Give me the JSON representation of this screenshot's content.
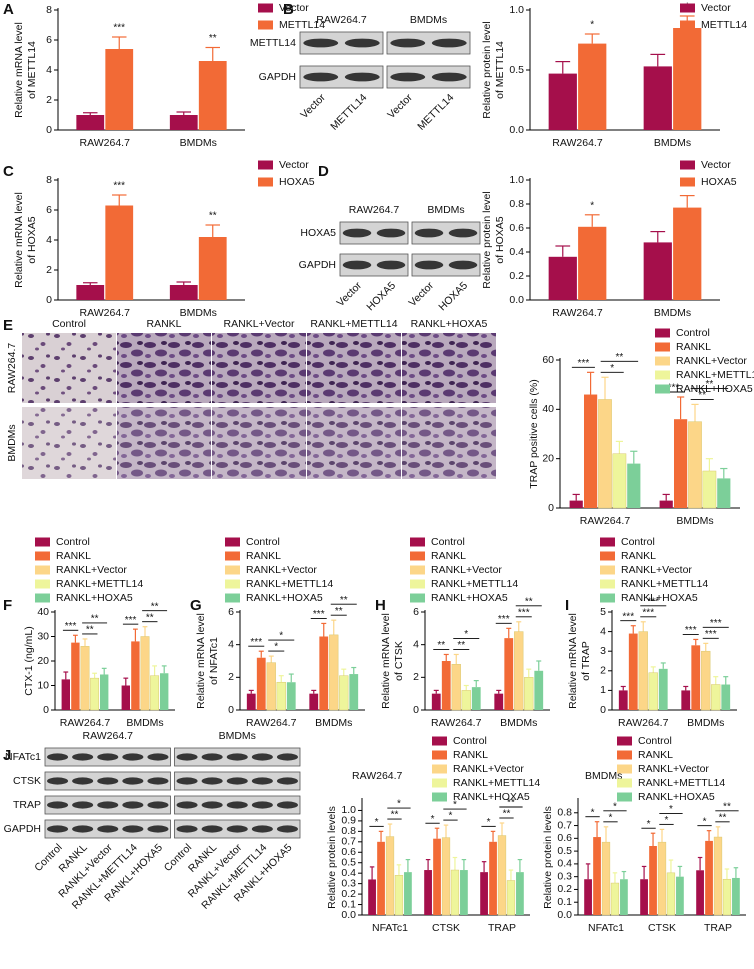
{
  "panels": [
    "A",
    "B",
    "C",
    "D",
    "E",
    "F",
    "G",
    "H",
    "I",
    "J"
  ],
  "blots": [
    {
      "groups": [
        "RAW264.7",
        "BMDMs"
      ],
      "rows": [
        "METTL14",
        "GAPDH"
      ],
      "lanes": [
        "Vector",
        "METTL14",
        "Vector",
        "METTL14"
      ]
    },
    {
      "groups": [
        "RAW264.7",
        "BMDMs"
      ],
      "rows": [
        "HOXA5",
        "GAPDH"
      ],
      "lanes": [
        "Vector",
        "HOXA5",
        "Vector",
        "HOXA5"
      ]
    },
    {
      "groups": [
        "RAW264.7",
        "BMDMs"
      ],
      "rows": [
        "NFATc1",
        "CTSK",
        "TRAP",
        "GAPDH"
      ],
      "lanes": [
        "Control",
        "RANKL",
        "RANKL+Vector",
        "RANKL+METTL14",
        "RANKL+HOXA5",
        "Control",
        "RANKL",
        "RANKL+Vector",
        "RANKL+METTL14",
        "RANKL+HOXA5"
      ]
    }
  ],
  "micrographs": {
    "columns": [
      "Control",
      "RANKL",
      "RANKL+Vector",
      "RANKL+METTL14",
      "RANKL+HOXA5"
    ],
    "rows": [
      "RAW264.7",
      "BMDMs"
    ]
  },
  "chart_data": [
    {
      "type": "bar",
      "ylabel": [
        "Relative mRNA level",
        "of METTL14"
      ],
      "categories": [
        "RAW264.7",
        "BMDMs"
      ],
      "series": [
        {
          "name": "Vector",
          "color": "#a50f4b",
          "values": [
            1.0,
            1.0
          ],
          "errors": [
            0.15,
            0.2
          ]
        },
        {
          "name": "METTL14",
          "color": "#f26a36",
          "values": [
            5.4,
            4.6
          ],
          "errors": [
            0.8,
            0.9
          ]
        }
      ],
      "ylim": [
        0,
        8
      ],
      "yticks": [
        0,
        2,
        4,
        6,
        8
      ],
      "annotations": [
        "***",
        "**"
      ]
    },
    {
      "type": "bar",
      "ylabel": [
        "Relative protein level",
        "of METTL14"
      ],
      "categories": [
        "RAW264.7",
        "BMDMs"
      ],
      "series": [
        {
          "name": "Vector",
          "color": "#a50f4b",
          "values": [
            0.47,
            0.53
          ],
          "errors": [
            0.1,
            0.1
          ]
        },
        {
          "name": "METTL14",
          "color": "#f26a36",
          "values": [
            0.72,
            0.85
          ],
          "errors": [
            0.08,
            0.1
          ]
        }
      ],
      "ylim": [
        0,
        1
      ],
      "yticks": [
        {
          "value": 0,
          "label": "0.0"
        },
        {
          "value": 0.5,
          "label": "0.5"
        },
        {
          "value": 1,
          "label": "1.0"
        }
      ],
      "annotations": [
        "*",
        "*"
      ]
    },
    {
      "type": "bar",
      "ylabel": [
        "Relative mRNA level",
        "of HOXA5"
      ],
      "categories": [
        "RAW264.7",
        "BMDMs"
      ],
      "series": [
        {
          "name": "Vector",
          "color": "#a50f4b",
          "values": [
            1.0,
            1.0
          ],
          "errors": [
            0.15,
            0.2
          ]
        },
        {
          "name": "HOXA5",
          "color": "#f26a36",
          "values": [
            6.3,
            4.2
          ],
          "errors": [
            0.7,
            0.8
          ]
        }
      ],
      "ylim": [
        0,
        8
      ],
      "yticks": [
        0,
        2,
        4,
        6,
        8
      ],
      "annotations": [
        "***",
        "**"
      ]
    },
    {
      "type": "bar",
      "ylabel": [
        "Relative protein level",
        "of HOXA5"
      ],
      "categories": [
        "RAW264.7",
        "BMDMs"
      ],
      "series": [
        {
          "name": "Vector",
          "color": "#a50f4b",
          "values": [
            0.36,
            0.48
          ],
          "errors": [
            0.09,
            0.09
          ]
        },
        {
          "name": "HOXA5",
          "color": "#f26a36",
          "values": [
            0.61,
            0.77
          ],
          "errors": [
            0.1,
            0.1
          ]
        }
      ],
      "ylim": [
        0,
        1
      ],
      "yticks": [
        {
          "value": 0,
          "label": "0.0"
        },
        {
          "value": 0.2,
          "label": "0.2"
        },
        {
          "value": 0.4,
          "label": "0.4"
        },
        {
          "value": 0.6,
          "label": "0.6"
        },
        {
          "value": 0.8,
          "label": "0.8"
        },
        {
          "value": 1,
          "label": "1.0"
        }
      ],
      "annotations": [
        "*",
        "*"
      ]
    },
    {
      "type": "bar",
      "ylabel": [
        "TRAP positive cells (%)"
      ],
      "categories": [
        "RAW264.7",
        "BMDMs"
      ],
      "series": [
        {
          "name": "Control",
          "color": "#a50f4b",
          "values": [
            3,
            3
          ],
          "errors": [
            2.5,
            2.5
          ]
        },
        {
          "name": "RANKL",
          "color": "#f26a36",
          "values": [
            46,
            36
          ],
          "errors": [
            9,
            9
          ]
        },
        {
          "name": "RANKL+Vector",
          "color": "#fcd688",
          "values": [
            44,
            35
          ],
          "errors": [
            9,
            7
          ]
        },
        {
          "name": "RANKL+METTL14",
          "color": "#eef59b",
          "values": [
            22,
            15
          ],
          "errors": [
            5,
            5
          ]
        },
        {
          "name": "RANKL+HOXA5",
          "color": "#7ccf99",
          "values": [
            18,
            12
          ],
          "errors": [
            5,
            4
          ]
        }
      ],
      "ylim": [
        0,
        60
      ],
      "yticks": [
        0,
        20,
        40,
        60
      ],
      "annotations": [
        "***",
        "*",
        "**",
        "***",
        "**",
        "**"
      ]
    },
    {
      "type": "bar",
      "ylabel": [
        "CTX-1 (ng/mL)"
      ],
      "categories": [
        "RAW264.7",
        "BMDMs"
      ],
      "series": [
        {
          "name": "Control",
          "color": "#a50f4b",
          "values": [
            12.5,
            10
          ],
          "errors": [
            3,
            3
          ]
        },
        {
          "name": "RANKL",
          "color": "#f26a36",
          "values": [
            27.5,
            28
          ],
          "errors": [
            3,
            5
          ]
        },
        {
          "name": "RANKL+Vector",
          "color": "#fcd688",
          "values": [
            26,
            30
          ],
          "errors": [
            3,
            4
          ]
        },
        {
          "name": "RANKL+METTL14",
          "color": "#eef59b",
          "values": [
            13,
            14
          ],
          "errors": [
            2,
            4
          ]
        },
        {
          "name": "RANKL+HOXA5",
          "color": "#7ccf99",
          "values": [
            14.5,
            15
          ],
          "errors": [
            2.5,
            3
          ]
        }
      ],
      "ylim": [
        0,
        40
      ],
      "yticks": [
        0,
        10,
        20,
        30,
        40
      ],
      "annotations": [
        "***",
        "**",
        "**",
        "***",
        "**",
        "**"
      ]
    },
    {
      "type": "bar",
      "ylabel": [
        "Relative mRNA level",
        "of NFATc1"
      ],
      "categories": [
        "RAW264.7",
        "BMDMs"
      ],
      "series": [
        {
          "name": "Control",
          "color": "#a50f4b",
          "values": [
            1,
            1
          ],
          "errors": [
            0.2,
            0.2
          ]
        },
        {
          "name": "RANKL",
          "color": "#f26a36",
          "values": [
            3.2,
            4.5
          ],
          "errors": [
            0.4,
            0.8
          ]
        },
        {
          "name": "RANKL+Vector",
          "color": "#fcd688",
          "values": [
            2.9,
            4.6
          ],
          "errors": [
            0.4,
            0.9
          ]
        },
        {
          "name": "RANKL+METTL14",
          "color": "#eef59b",
          "values": [
            1.7,
            2.1
          ],
          "errors": [
            0.4,
            0.4
          ]
        },
        {
          "name": "RANKL+HOXA5",
          "color": "#7ccf99",
          "values": [
            1.7,
            2.2
          ],
          "errors": [
            0.5,
            0.4
          ]
        }
      ],
      "ylim": [
        0,
        6
      ],
      "yticks": [
        0,
        2,
        4,
        6
      ],
      "annotations": [
        "***",
        "*",
        "*",
        "***",
        "**",
        "**"
      ]
    },
    {
      "type": "bar",
      "ylabel": [
        "Relative mRNA level",
        "of CTSK"
      ],
      "categories": [
        "RAW264.7",
        "BMDMs"
      ],
      "series": [
        {
          "name": "Control",
          "color": "#a50f4b",
          "values": [
            1,
            1
          ],
          "errors": [
            0.2,
            0.2
          ]
        },
        {
          "name": "RANKL",
          "color": "#f26a36",
          "values": [
            3,
            4.4
          ],
          "errors": [
            0.4,
            0.6
          ]
        },
        {
          "name": "RANKL+Vector",
          "color": "#fcd688",
          "values": [
            2.8,
            4.8
          ],
          "errors": [
            0.6,
            0.6
          ]
        },
        {
          "name": "RANKL+METTL14",
          "color": "#eef59b",
          "values": [
            1.2,
            2
          ],
          "errors": [
            0.3,
            0.5
          ]
        },
        {
          "name": "RANKL+HOXA5",
          "color": "#7ccf99",
          "values": [
            1.4,
            2.4
          ],
          "errors": [
            0.4,
            0.6
          ]
        }
      ],
      "ylim": [
        0,
        6
      ],
      "yticks": [
        0,
        2,
        4,
        6
      ],
      "annotations": [
        "**",
        "**",
        "*",
        "***",
        "***",
        "**"
      ]
    },
    {
      "type": "bar",
      "ylabel": [
        "Relative mRNA level",
        "of TRAP"
      ],
      "categories": [
        "RAW264.7",
        "BMDMs"
      ],
      "series": [
        {
          "name": "Control",
          "color": "#a50f4b",
          "values": [
            1,
            1
          ],
          "errors": [
            0.2,
            0.2
          ]
        },
        {
          "name": "RANKL",
          "color": "#f26a36",
          "values": [
            3.9,
            3.3
          ],
          "errors": [
            0.4,
            0.3
          ]
        },
        {
          "name": "RANKL+Vector",
          "color": "#fcd688",
          "values": [
            4,
            3
          ],
          "errors": [
            0.5,
            0.4
          ]
        },
        {
          "name": "RANKL+METTL14",
          "color": "#eef59b",
          "values": [
            1.9,
            1.3
          ],
          "errors": [
            0.3,
            0.4
          ]
        },
        {
          "name": "RANKL+HOXA5",
          "color": "#7ccf99",
          "values": [
            2.1,
            1.3
          ],
          "errors": [
            0.3,
            0.4
          ]
        }
      ],
      "ylim": [
        0,
        5
      ],
      "yticks": [
        0,
        1,
        2,
        3,
        4,
        5
      ],
      "annotations": [
        "***",
        "***",
        "***",
        "***",
        "***",
        "***"
      ]
    },
    {
      "type": "bar",
      "title": "RAW264.7",
      "ylabel": [
        "Relative protein levels"
      ],
      "categories": [
        "NFATc1",
        "CTSK",
        "TRAP"
      ],
      "series": [
        {
          "name": "Control",
          "color": "#a50f4b",
          "values": [
            0.34,
            0.43,
            0.41
          ],
          "errors": [
            0.12,
            0.1,
            0.1
          ]
        },
        {
          "name": "RANKL",
          "color": "#f26a36",
          "values": [
            0.7,
            0.73,
            0.7
          ],
          "errors": [
            0.1,
            0.1,
            0.1
          ]
        },
        {
          "name": "RANKL+Vector",
          "color": "#fcd688",
          "values": [
            0.75,
            0.74,
            0.76
          ],
          "errors": [
            0.12,
            0.12,
            0.12
          ]
        },
        {
          "name": "RANKL+METTL14",
          "color": "#eef59b",
          "values": [
            0.38,
            0.43,
            0.33
          ],
          "errors": [
            0.1,
            0.12,
            0.1
          ]
        },
        {
          "name": "RANKL+HOXA5",
          "color": "#7ccf99",
          "values": [
            0.41,
            0.43,
            0.41
          ],
          "errors": [
            0.12,
            0.1,
            0.12
          ]
        }
      ],
      "ylim": [
        0,
        1.1
      ],
      "yticks": [
        {
          "value": 0,
          "label": "0.0"
        },
        {
          "value": 0.1,
          "label": "0.1"
        },
        {
          "value": 0.2,
          "label": "0.2"
        },
        {
          "value": 0.3,
          "label": "0.3"
        },
        {
          "value": 0.4,
          "label": "0.4"
        },
        {
          "value": 0.5,
          "label": "0.5"
        },
        {
          "value": 0.6,
          "label": "0.6"
        },
        {
          "value": 0.7,
          "label": "0.7"
        },
        {
          "value": 0.8,
          "label": "0.8"
        },
        {
          "value": 0.9,
          "label": "0.9"
        },
        {
          "value": 1,
          "label": "1.0"
        }
      ],
      "annotations": [
        "*",
        "**",
        "*",
        "*",
        "*",
        "*",
        "*",
        "**",
        "**"
      ]
    },
    {
      "type": "bar",
      "title": "BMDMs",
      "ylabel": [
        "Relative protein levels"
      ],
      "categories": [
        "NFATc1",
        "CTSK",
        "TRAP"
      ],
      "series": [
        {
          "name": "Control",
          "color": "#a50f4b",
          "values": [
            0.28,
            0.28,
            0.35
          ],
          "errors": [
            0.12,
            0.1,
            0.1
          ]
        },
        {
          "name": "RANKL",
          "color": "#f26a36",
          "values": [
            0.61,
            0.54,
            0.58
          ],
          "errors": [
            0.12,
            0.1,
            0.08
          ]
        },
        {
          "name": "RANKL+Vector",
          "color": "#fcd688",
          "values": [
            0.57,
            0.57,
            0.61
          ],
          "errors": [
            0.12,
            0.1,
            0.08
          ]
        },
        {
          "name": "RANKL+METTL14",
          "color": "#eef59b",
          "values": [
            0.25,
            0.33,
            0.28
          ],
          "errors": [
            0.08,
            0.1,
            0.08
          ]
        },
        {
          "name": "RANKL+HOXA5",
          "color": "#7ccf99",
          "values": [
            0.28,
            0.3,
            0.29
          ],
          "errors": [
            0.06,
            0.08,
            0.08
          ]
        }
      ],
      "ylim": [
        0,
        0.9
      ],
      "yticks": [
        {
          "value": 0,
          "label": "0.0"
        },
        {
          "value": 0.1,
          "label": "0.1"
        },
        {
          "value": 0.2,
          "label": "0.2"
        },
        {
          "value": 0.3,
          "label": "0.3"
        },
        {
          "value": 0.4,
          "label": "0.4"
        },
        {
          "value": 0.5,
          "label": "0.5"
        },
        {
          "value": 0.6,
          "label": "0.6"
        },
        {
          "value": 0.7,
          "label": "0.7"
        },
        {
          "value": 0.8,
          "label": "0.8"
        }
      ],
      "annotations": [
        "*",
        "*",
        "*",
        "*",
        "*",
        "*",
        "*",
        "**",
        "**"
      ]
    }
  ]
}
